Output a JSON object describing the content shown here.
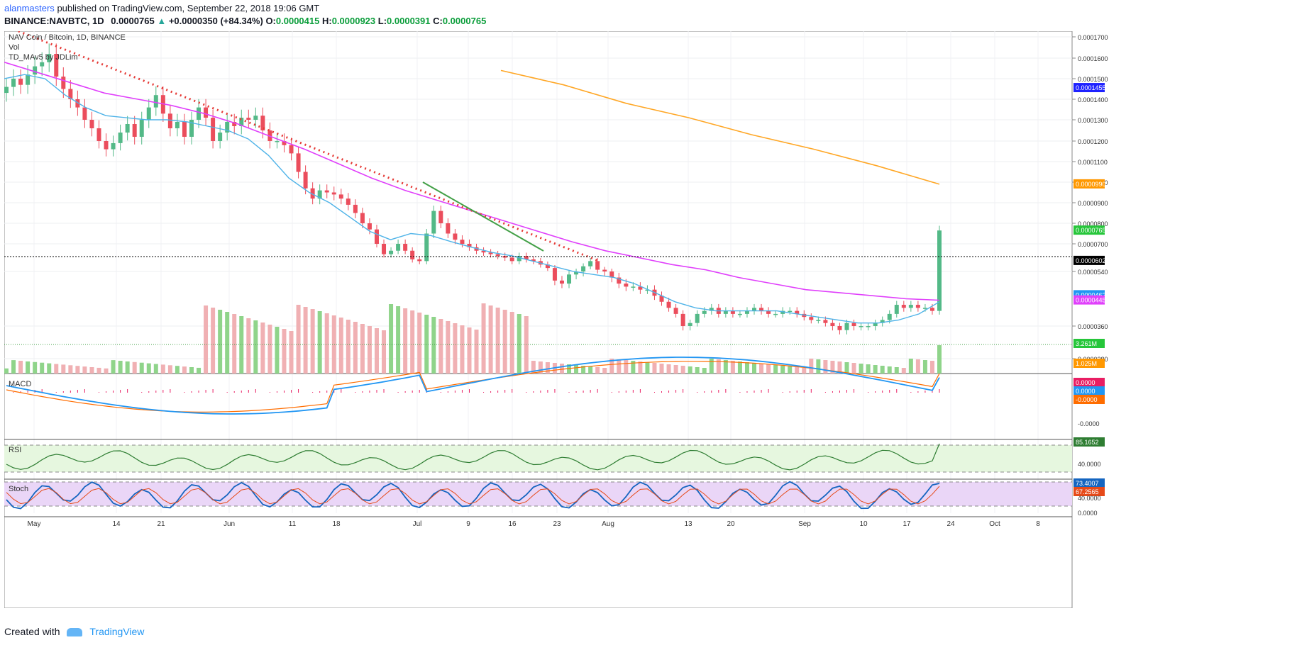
{
  "header": {
    "author": "alanmasters",
    "published": "published on TradingView.com, September 22, 2018 19:06 GMT",
    "symbol": "BINANCE:NAVBTC, 1D",
    "last": "0.0000765",
    "change": "+0.0000350 (+84.34%)",
    "o_label": "O:",
    "o": "0.0000415",
    "h_label": "H:",
    "h": "0.0000923",
    "l_label": "L:",
    "l": "0.0000391",
    "c_label": "C:",
    "c": "0.0000765"
  },
  "legend": {
    "title": "NAV Coin / Bitcoin, 1D, BINANCE",
    "vol": "Vol",
    "td": "TD_MAv5 by JDLim",
    "macd": "MACD",
    "rsi": "RSI",
    "stoch": "Stoch"
  },
  "footer": {
    "created": "Created with",
    "brand": "TradingView"
  },
  "colors": {
    "up": "#53b987",
    "down": "#eb4d5c",
    "ema20": "#4fb3e8",
    "ma100": "#e040fb",
    "ma200": "#ffa726",
    "trend": "#e53935",
    "macd": "#2196f3",
    "signal": "#ff6d00",
    "rsi": "#2e7d32",
    "stochK": "#1565c0",
    "stochD": "#e64a19"
  },
  "chart_data": {
    "type": "candlestick",
    "title": "NAV Coin / Bitcoin, 1D, BINANCE",
    "y_axis_ticks": [
      "0.0001700",
      "0.0001600",
      "0.0001500",
      "0.0001400",
      "0.0001300",
      "0.0001200",
      "0.0001100",
      "0.0001000",
      "0.0000900",
      "0.0000800",
      "0.0000700",
      "0.0000540",
      "0.0000360",
      "0.0000280"
    ],
    "x_axis_ticks": [
      "May",
      "14",
      "21",
      "Jun",
      "11",
      "18",
      "Jul",
      "9",
      "16",
      "23",
      "Aug",
      "13",
      "20",
      "Sep",
      "10",
      "17",
      "24",
      "Oct",
      "8"
    ],
    "price_labels": [
      {
        "label": "0.0001455",
        "bg": "#1e22ff",
        "y": 0.0001455
      },
      {
        "label": "0.0000990",
        "bg": "#ff9800",
        "y": 9.9e-05
      },
      {
        "label": "0.0000765",
        "bg": "#26c63a",
        "y": 7.65e-05
      },
      {
        "label": "0.0000602",
        "bg": "#000000",
        "y": 6.02e-05
      },
      {
        "label": "0.0000462",
        "bg": "#2196f3",
        "y": 4.62e-05
      },
      {
        "label": "0.0000445",
        "bg": "#e040fb",
        "y": 4.45e-05
      }
    ],
    "volume_labels": [
      {
        "label": "3.261M",
        "bg": "#26c63a"
      },
      {
        "label": "1.025M",
        "bg": "#ff9800"
      }
    ],
    "macd_labels": [
      {
        "label": "0.0000",
        "bg": "#e91e63"
      },
      {
        "label": "0.0000",
        "bg": "#2196f3"
      },
      {
        "label": "-0.0000",
        "bg": "#ff6d00"
      }
    ],
    "macd_axis": [
      "-0.0000"
    ],
    "rsi_labels": [
      {
        "label": "85.1652",
        "bg": "#2e7d32"
      }
    ],
    "rsi_axis": [
      "40.0000"
    ],
    "stoch_labels": [
      {
        "label": "73.4007",
        "bg": "#1565c0"
      },
      {
        "label": "67.2565",
        "bg": "#e64a19"
      }
    ],
    "stoch_axis": [
      "40.0000",
      "0.0000"
    ],
    "closes": [
      1.46,
      1.5,
      1.47,
      1.52,
      1.56,
      1.58,
      1.62,
      1.51,
      1.45,
      1.4,
      1.36,
      1.3,
      1.26,
      1.2,
      1.16,
      1.19,
      1.24,
      1.28,
      1.22,
      1.3,
      1.36,
      1.42,
      1.33,
      1.26,
      1.29,
      1.22,
      1.3,
      1.36,
      1.31,
      1.2,
      1.24,
      1.29,
      1.27,
      1.31,
      1.3,
      1.32,
      1.25,
      1.2,
      1.2,
      1.18,
      1.14,
      1.05,
      0.97,
      0.92,
      0.96,
      0.95,
      0.94,
      0.92,
      0.89,
      0.85,
      0.8,
      0.77,
      0.7,
      0.64,
      0.66,
      0.7,
      0.66,
      0.61,
      0.6,
      0.75,
      0.86,
      0.8,
      0.75,
      0.72,
      0.7,
      0.68,
      0.66,
      0.65,
      0.64,
      0.63,
      0.62,
      0.6,
      0.63,
      0.61,
      0.6,
      0.58,
      0.56,
      0.51,
      0.5,
      0.53,
      0.54,
      0.57,
      0.6,
      0.55,
      0.54,
      0.52,
      0.5,
      0.49,
      0.49,
      0.48,
      0.48,
      0.46,
      0.44,
      0.42,
      0.4,
      0.36,
      0.37,
      0.4,
      0.41,
      0.42,
      0.4,
      0.41,
      0.4,
      0.4,
      0.41,
      0.42,
      0.41,
      0.4,
      0.4,
      0.41,
      0.41,
      0.4,
      0.39,
      0.38,
      0.38,
      0.37,
      0.36,
      0.35,
      0.37,
      0.36,
      0.36,
      0.36,
      0.37,
      0.38,
      0.4,
      0.43,
      0.42,
      0.43,
      0.42,
      0.42,
      0.41,
      0.765
    ],
    "ema20_points": [
      1.5,
      1.52,
      1.5,
      1.42,
      1.36,
      1.32,
      1.31,
      1.3,
      1.3,
      1.29,
      1.27,
      1.25,
      1.21,
      1.13,
      1.02,
      0.95,
      0.9,
      0.83,
      0.76,
      0.72,
      0.75,
      0.74,
      0.71,
      0.68,
      0.65,
      0.63,
      0.6,
      0.57,
      0.54,
      0.53,
      0.52,
      0.5,
      0.47,
      0.44,
      0.42,
      0.41,
      0.41,
      0.41,
      0.41,
      0.4,
      0.39,
      0.38,
      0.37,
      0.37,
      0.38,
      0.4,
      0.44
    ],
    "ma100_points": [
      1.58,
      1.53,
      1.48,
      1.43,
      1.4,
      1.37,
      1.33,
      1.28,
      1.22,
      1.16,
      1.09,
      1.02,
      0.96,
      0.91,
      0.86,
      0.81,
      0.76,
      0.71,
      0.66,
      0.62,
      0.58,
      0.55,
      0.52,
      0.5,
      0.48,
      0.47,
      0.46,
      0.45,
      0.445
    ],
    "ma200_points": [
      1.54,
      1.47,
      1.38,
      1.31,
      1.23,
      1.16,
      1.08,
      0.99
    ],
    "volume_note": "heights relative",
    "rsi_value": 85.1652,
    "stoch_k": 73.4007,
    "stoch_d": 67.2565
  }
}
